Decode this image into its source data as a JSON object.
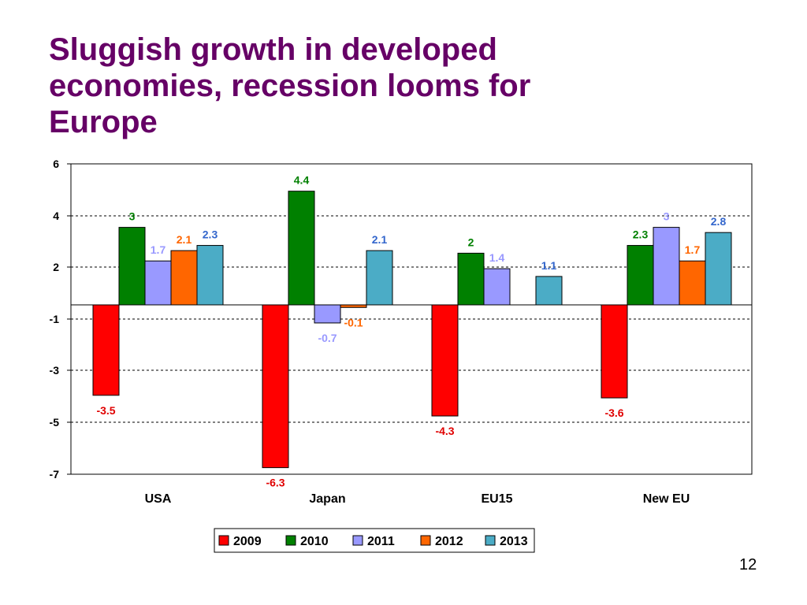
{
  "slide": {
    "title": "Sluggish growth in developed economies, recession looms for Europe",
    "page_number": "12"
  },
  "chart_data": {
    "type": "bar",
    "title": "",
    "xlabel": "",
    "ylabel": "",
    "categories": [
      "USA",
      "Japan",
      "EU15",
      "New EU"
    ],
    "y_tick_labels": [
      "6",
      "4",
      "2",
      "-1",
      "-3",
      "-5",
      "-7"
    ],
    "series": [
      {
        "name": "2009",
        "color": "#ff0000",
        "label_color": "#e00000",
        "values": [
          -3.5,
          -6.3,
          -4.3,
          -3.6
        ],
        "labels": [
          "-3.5",
          "-6.3",
          "-4.3",
          "-3.6"
        ]
      },
      {
        "name": "2010",
        "color": "#008000",
        "label_color": "#008000",
        "values": [
          3,
          4.4,
          2,
          2.3
        ],
        "labels": [
          "3",
          "4.4",
          "2",
          "2.3"
        ]
      },
      {
        "name": "2011",
        "color": "#9999ff",
        "label_color": "#9999ff",
        "values": [
          1.7,
          -0.7,
          1.4,
          3
        ],
        "labels": [
          "1.7",
          "-0.7",
          "1.4",
          "3"
        ]
      },
      {
        "name": "2012",
        "color": "#ff6600",
        "label_color": "#ff6600",
        "values": [
          2.1,
          -0.1,
          null,
          1.7
        ],
        "labels": [
          "2.1",
          "-0.1",
          "",
          "1.7"
        ]
      },
      {
        "name": "2013",
        "color": "#4bacc6",
        "label_color": "#3366cc",
        "values": [
          2.3,
          2.1,
          1.1,
          2.8
        ],
        "labels": [
          "2.3",
          "2.1",
          "1.1",
          "2.8"
        ]
      }
    ],
    "legend_position": "bottom",
    "gridlines": true
  }
}
